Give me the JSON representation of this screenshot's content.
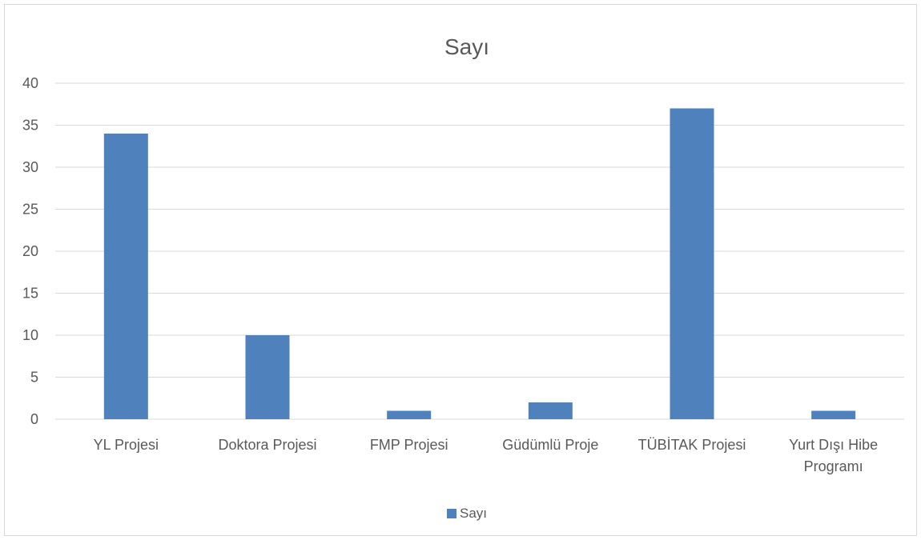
{
  "chart_data": {
    "type": "bar",
    "title": "Sayı",
    "categories": [
      "YL Projesi",
      "Doktora Projesi",
      "FMP Projesi",
      "Güdümlü Proje",
      "TÜBİTAK Projesi",
      "Yurt Dışı Hibe Programı"
    ],
    "series": [
      {
        "name": "Sayı",
        "values": [
          34,
          10,
          1,
          2,
          37,
          1
        ],
        "color": "#4f81bd"
      }
    ],
    "xlabel": "",
    "ylabel": "",
    "ylim": [
      0,
      40
    ],
    "yticks": [
      0,
      5,
      10,
      15,
      20,
      25,
      30,
      35,
      40
    ],
    "grid": true,
    "legend": "bottom"
  }
}
